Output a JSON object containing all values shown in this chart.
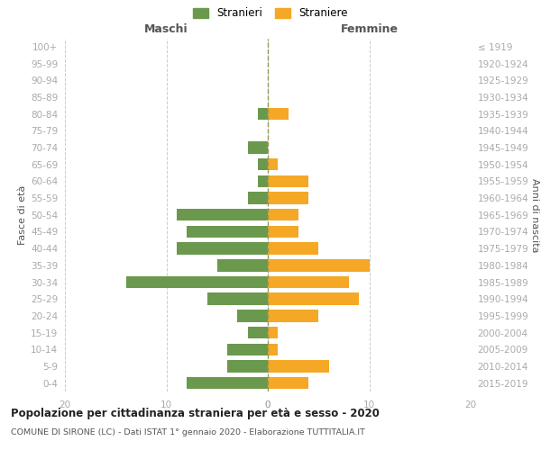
{
  "age_groups": [
    "0-4",
    "5-9",
    "10-14",
    "15-19",
    "20-24",
    "25-29",
    "30-34",
    "35-39",
    "40-44",
    "45-49",
    "50-54",
    "55-59",
    "60-64",
    "65-69",
    "70-74",
    "75-79",
    "80-84",
    "85-89",
    "90-94",
    "95-99",
    "100+"
  ],
  "birth_years": [
    "2015-2019",
    "2010-2014",
    "2005-2009",
    "2000-2004",
    "1995-1999",
    "1990-1994",
    "1985-1989",
    "1980-1984",
    "1975-1979",
    "1970-1974",
    "1965-1969",
    "1960-1964",
    "1955-1959",
    "1950-1954",
    "1945-1949",
    "1940-1944",
    "1935-1939",
    "1930-1934",
    "1925-1929",
    "1920-1924",
    "≤ 1919"
  ],
  "maschi": [
    8,
    4,
    4,
    2,
    3,
    6,
    14,
    5,
    9,
    8,
    9,
    2,
    1,
    1,
    2,
    0,
    1,
    0,
    0,
    0,
    0
  ],
  "femmine": [
    4,
    6,
    1,
    1,
    5,
    9,
    8,
    10,
    5,
    3,
    3,
    4,
    4,
    1,
    0,
    0,
    2,
    0,
    0,
    0,
    0
  ],
  "maschi_color": "#6a994e",
  "femmine_color": "#f4a825",
  "title1": "Popolazione per cittadinanza straniera per età e sesso - 2020",
  "title2": "COMUNE DI SIRONE (LC) - Dati ISTAT 1° gennaio 2020 - Elaborazione TUTTITALIA.IT",
  "legend_maschi": "Stranieri",
  "legend_femmine": "Straniere",
  "label_maschi": "Maschi",
  "label_femmine": "Femmine",
  "ylabel_left": "Fasce di età",
  "ylabel_right": "Anni di nascita",
  "xlim": 20,
  "background_color": "#ffffff",
  "grid_color": "#cccccc",
  "tick_color": "#aaaaaa",
  "label_color": "#555555",
  "spine_color": "#cccccc"
}
